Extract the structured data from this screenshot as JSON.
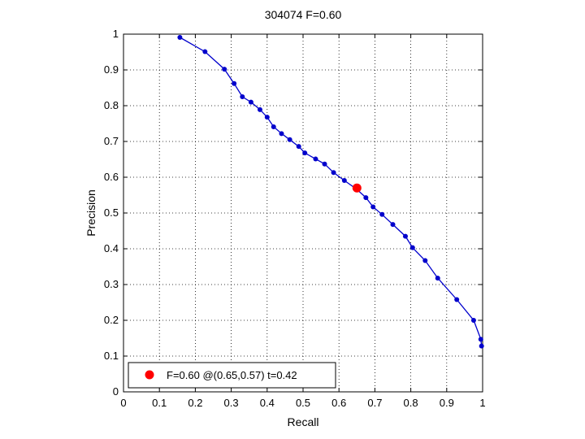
{
  "chart_data": {
    "type": "line",
    "title": "304074 F=0.60",
    "xlabel": "Recall",
    "ylabel": "Precision",
    "xlim": [
      0,
      1
    ],
    "ylim": [
      0,
      1
    ],
    "x_ticks": [
      "0",
      "0.1",
      "0.2",
      "0.3",
      "0.4",
      "0.5",
      "0.6",
      "0.7",
      "0.8",
      "0.9",
      "1"
    ],
    "y_ticks": [
      "0",
      "0.1",
      "0.2",
      "0.3",
      "0.4",
      "0.5",
      "0.6",
      "0.7",
      "0.8",
      "0.9",
      "1"
    ],
    "grid": true,
    "legend_position": "bottom-left",
    "series": [
      {
        "color": "#0000cc",
        "points": [
          [
            0.157,
            0.991
          ],
          [
            0.227,
            0.951
          ],
          [
            0.281,
            0.902
          ],
          [
            0.308,
            0.862
          ],
          [
            0.331,
            0.825
          ],
          [
            0.355,
            0.81
          ],
          [
            0.38,
            0.789
          ],
          [
            0.4,
            0.768
          ],
          [
            0.418,
            0.741
          ],
          [
            0.44,
            0.722
          ],
          [
            0.463,
            0.705
          ],
          [
            0.488,
            0.686
          ],
          [
            0.505,
            0.668
          ],
          [
            0.535,
            0.651
          ],
          [
            0.56,
            0.637
          ],
          [
            0.585,
            0.613
          ],
          [
            0.615,
            0.591
          ],
          [
            0.65,
            0.566
          ],
          [
            0.675,
            0.543
          ],
          [
            0.695,
            0.517
          ],
          [
            0.72,
            0.496
          ],
          [
            0.75,
            0.468
          ],
          [
            0.785,
            0.435
          ],
          [
            0.805,
            0.403
          ],
          [
            0.84,
            0.367
          ],
          [
            0.875,
            0.318
          ],
          [
            0.928,
            0.258
          ],
          [
            0.975,
            0.2
          ],
          [
            0.995,
            0.147
          ],
          [
            0.997,
            0.128
          ]
        ]
      }
    ],
    "highlight": {
      "x": 0.65,
      "y": 0.57,
      "color": "#ff0000",
      "label": "F=0.60 @(0.65,0.57) t=0.42"
    }
  }
}
